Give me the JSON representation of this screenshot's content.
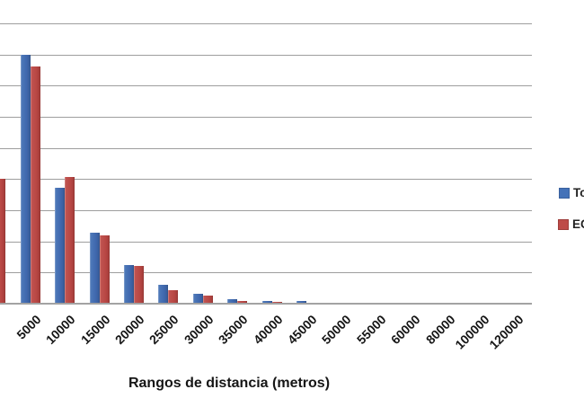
{
  "chart_data": {
    "type": "bar",
    "title": "",
    "xlabel": "Rangos de distancia (metros)",
    "ylabel": "",
    "y_axis_note": "y-axis tick labels are cropped off the left edge of the screenshot; values measured in horizontal-gridline units",
    "ylim": [
      0,
      9.5
    ],
    "gridline_step": 1,
    "visible_gridlines": 9,
    "grid": "horizontal",
    "legend_position": "right (clipped by right edge of image)",
    "categories": [
      "5000",
      "10000",
      "15000",
      "20000",
      "25000",
      "30000",
      "35000",
      "40000",
      "45000",
      "50000",
      "55000",
      "60000",
      "80000",
      "100000",
      "120000"
    ],
    "series": [
      {
        "name": "To",
        "color": "#4472B8",
        "values": [
          8.0,
          3.73,
          2.27,
          1.24,
          0.6,
          0.31,
          0.15,
          0.1,
          0.08,
          0.04,
          0,
          0,
          0,
          0,
          0
        ]
      },
      {
        "name": "EC",
        "color": "#BE4B48",
        "values": [
          7.62,
          4.08,
          2.2,
          1.21,
          0.44,
          0.26,
          0.1,
          0.05,
          0.03,
          0.02,
          0,
          0,
          0,
          0,
          0
        ]
      }
    ],
    "cropped_partial_bar": {
      "series_index": 1,
      "value": 4.0,
      "position": "left edge, its category label is cropped out of frame"
    }
  },
  "colors": {
    "series1": "#4472B8",
    "series2": "#BE4B48",
    "gridline": "#9E9E9E",
    "axis_line": "#A3A3A3",
    "text": "#161616",
    "background": "#FFFFFF"
  }
}
